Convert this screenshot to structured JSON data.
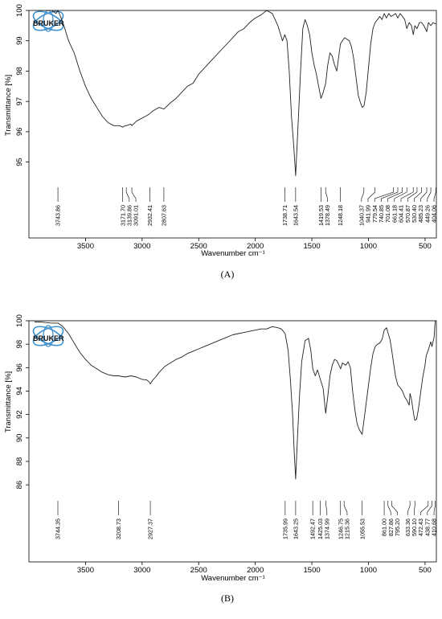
{
  "panels": [
    {
      "label": "(A)",
      "logo_text": "BRUKER",
      "chart_data": {
        "type": "line",
        "xlabel": "Wavenumber cm⁻¹",
        "ylabel": "Transmittance [%]",
        "xlim": [
          4000,
          400
        ],
        "ylim": [
          94.3,
          100
        ],
        "x_ticks": [
          3500,
          3000,
          2500,
          2000,
          1500,
          1000,
          500
        ],
        "y_ticks": [
          95,
          96,
          97,
          98,
          99,
          100
        ],
        "grid": false,
        "x": [
          3950,
          3900,
          3850,
          3800,
          3760,
          3743,
          3700,
          3650,
          3600,
          3550,
          3500,
          3450,
          3400,
          3350,
          3300,
          3250,
          3200,
          3171,
          3150,
          3140,
          3100,
          3091,
          3050,
          3000,
          2950,
          2932,
          2900,
          2850,
          2807,
          2750,
          2700,
          2650,
          2600,
          2550,
          2500,
          2450,
          2400,
          2350,
          2300,
          2250,
          2200,
          2150,
          2100,
          2050,
          2000,
          1950,
          1900,
          1850,
          1800,
          1760,
          1739,
          1720,
          1700,
          1680,
          1660,
          1643,
          1625,
          1600,
          1580,
          1560,
          1540,
          1520,
          1500,
          1480,
          1460,
          1440,
          1420,
          1400,
          1378,
          1360,
          1340,
          1320,
          1300,
          1280,
          1248,
          1230,
          1210,
          1190,
          1170,
          1150,
          1130,
          1110,
          1090,
          1070,
          1055,
          1040,
          1020,
          1000,
          980,
          960,
          942,
          920,
          900,
          880,
          860,
          842,
          820,
          800,
          780,
          760,
          741,
          720,
          700,
          680,
          661,
          640,
          620,
          604,
          590,
          571,
          550,
          530,
          510,
          485,
          470,
          449,
          430,
          404
        ],
        "y": [
          100,
          100,
          100,
          100,
          99.9,
          100,
          99.6,
          99.0,
          98.6,
          98.0,
          97.5,
          97.1,
          96.8,
          96.5,
          96.3,
          96.2,
          96.2,
          96.15,
          96.2,
          96.2,
          96.25,
          96.2,
          96.35,
          96.45,
          96.55,
          96.6,
          96.7,
          96.8,
          96.75,
          96.95,
          97.1,
          97.3,
          97.5,
          97.6,
          97.9,
          98.1,
          98.3,
          98.5,
          98.7,
          98.9,
          99.1,
          99.3,
          99.4,
          99.6,
          99.75,
          99.85,
          100,
          99.9,
          99.5,
          99.0,
          99.2,
          99.0,
          98.0,
          96.5,
          95.5,
          94.55,
          96.0,
          98.0,
          99.4,
          99.7,
          99.5,
          99.2,
          98.6,
          98.2,
          97.9,
          97.5,
          97.1,
          97.3,
          97.6,
          98.2,
          98.6,
          98.5,
          98.2,
          98.0,
          98.9,
          99.0,
          99.1,
          99.05,
          99.0,
          98.8,
          98.4,
          97.8,
          97.2,
          96.95,
          96.8,
          96.85,
          97.3,
          98.1,
          98.9,
          99.4,
          99.6,
          99.7,
          99.8,
          99.7,
          99.9,
          99.75,
          99.9,
          99.8,
          99.85,
          99.9,
          99.75,
          99.9,
          99.8,
          99.7,
          99.4,
          99.6,
          99.5,
          99.2,
          99.5,
          99.4,
          99.6,
          99.6,
          99.5,
          99.3,
          99.6,
          99.5,
          99.6,
          99.55
        ],
        "peaks": [
          "3743.86",
          "3171.70",
          "3139.86",
          "3091.01",
          "2932.41",
          "2807.63",
          "1738.71",
          "1643.54",
          "1419.53",
          "1378.49",
          "1248.18",
          "1040.37",
          "941.99",
          "779.54",
          "740.85",
          "701.08",
          "661.18",
          "604.41",
          "570.87",
          "530.40",
          "485.23",
          "449.26",
          "404.06"
        ],
        "peak_x": [
          3743.86,
          3171.7,
          3139.86,
          3091.01,
          2932.41,
          2807.63,
          1738.71,
          1643.54,
          1419.53,
          1378.49,
          1248.18,
          1040.37,
          941.99,
          779.54,
          740.85,
          701.08,
          661.18,
          604.41,
          570.87,
          530.4,
          485.23,
          449.26,
          404.06
        ]
      }
    },
    {
      "label": "(B)",
      "logo_text": "BRUKER",
      "chart_data": {
        "type": "line",
        "xlabel": "Wavenumber cm⁻¹",
        "ylabel": "Transmittance [%]",
        "xlim": [
          4000,
          400
        ],
        "ylim": [
          84.5,
          100
        ],
        "x_ticks": [
          3500,
          3000,
          2500,
          2000,
          1500,
          1000,
          500
        ],
        "y_ticks": [
          86,
          88,
          90,
          92,
          94,
          96,
          98,
          100
        ],
        "grid": false,
        "x": [
          3950,
          3900,
          3850,
          3800,
          3744,
          3700,
          3650,
          3600,
          3550,
          3500,
          3450,
          3400,
          3350,
          3300,
          3250,
          3209,
          3150,
          3100,
          3050,
          3000,
          2960,
          2940,
          2927,
          2910,
          2880,
          2850,
          2800,
          2750,
          2700,
          2650,
          2600,
          2550,
          2500,
          2450,
          2400,
          2350,
          2300,
          2250,
          2200,
          2150,
          2100,
          2050,
          2000,
          1950,
          1900,
          1850,
          1800,
          1770,
          1736,
          1710,
          1690,
          1670,
          1655,
          1643,
          1630,
          1610,
          1590,
          1560,
          1530,
          1510,
          1492,
          1470,
          1450,
          1425,
          1400,
          1390,
          1378,
          1360,
          1340,
          1320,
          1300,
          1280,
          1260,
          1246,
          1230,
          1215,
          1200,
          1180,
          1160,
          1140,
          1120,
          1100,
          1080,
          1056,
          1040,
          1020,
          1000,
          980,
          960,
          940,
          920,
          900,
          880,
          861,
          840,
          828,
          810,
          795,
          780,
          760,
          740,
          720,
          700,
          680,
          660,
          640,
          633,
          620,
          600,
          590,
          575,
          560,
          540,
          520,
          500,
          490,
          472,
          450,
          439,
          420,
          411
        ],
        "y": [
          99.9,
          99.9,
          99.85,
          99.8,
          99.8,
          99.5,
          98.9,
          98.1,
          97.3,
          96.7,
          96.2,
          95.9,
          95.6,
          95.4,
          95.3,
          95.3,
          95.2,
          95.3,
          95.2,
          95.0,
          94.95,
          94.8,
          94.6,
          94.9,
          95.2,
          95.6,
          96.1,
          96.4,
          96.7,
          96.9,
          97.2,
          97.4,
          97.6,
          97.8,
          98.0,
          98.2,
          98.4,
          98.6,
          98.8,
          98.9,
          99.0,
          99.1,
          99.2,
          99.3,
          99.3,
          99.5,
          99.4,
          99.3,
          98.9,
          97.5,
          95.0,
          92.0,
          88.5,
          86.5,
          89.5,
          93.5,
          96.5,
          98.3,
          98.5,
          97.5,
          95.9,
          95.3,
          95.8,
          95.0,
          94.2,
          93.2,
          92.1,
          93.5,
          95.3,
          96.2,
          96.7,
          96.6,
          96.2,
          95.9,
          96.4,
          96.3,
          96.2,
          96.5,
          96.0,
          94.0,
          92.4,
          91.2,
          90.7,
          90.3,
          91.5,
          93.0,
          94.5,
          96.0,
          97.2,
          97.8,
          98.0,
          98.1,
          98.4,
          99.2,
          99.4,
          99.0,
          98.4,
          97.5,
          96.5,
          95.2,
          94.5,
          94.3,
          94.0,
          93.5,
          93.2,
          92.8,
          93.8,
          93.3,
          92.0,
          91.5,
          91.6,
          92.4,
          93.8,
          95.2,
          96.2,
          97.0,
          97.5,
          98.2,
          97.8,
          98.6,
          100.0
        ],
        "peaks": [
          "3744.35",
          "3208.73",
          "2927.37",
          "1735.99",
          "1643.25",
          "1492.47",
          "1425.03",
          "1374.99",
          "1246.75",
          "1215.36",
          "1055.53",
          "861.00",
          "827.86",
          "795.20",
          "633.36",
          "590.10",
          "472.43",
          "438.77",
          "410.68"
        ],
        "peak_x": [
          3744.35,
          3208.73,
          2927.37,
          1735.99,
          1643.25,
          1492.47,
          1425.03,
          1374.99,
          1246.75,
          1215.36,
          1055.53,
          861.0,
          827.86,
          795.2,
          633.36,
          590.1,
          472.43,
          438.77,
          410.68
        ]
      }
    }
  ]
}
